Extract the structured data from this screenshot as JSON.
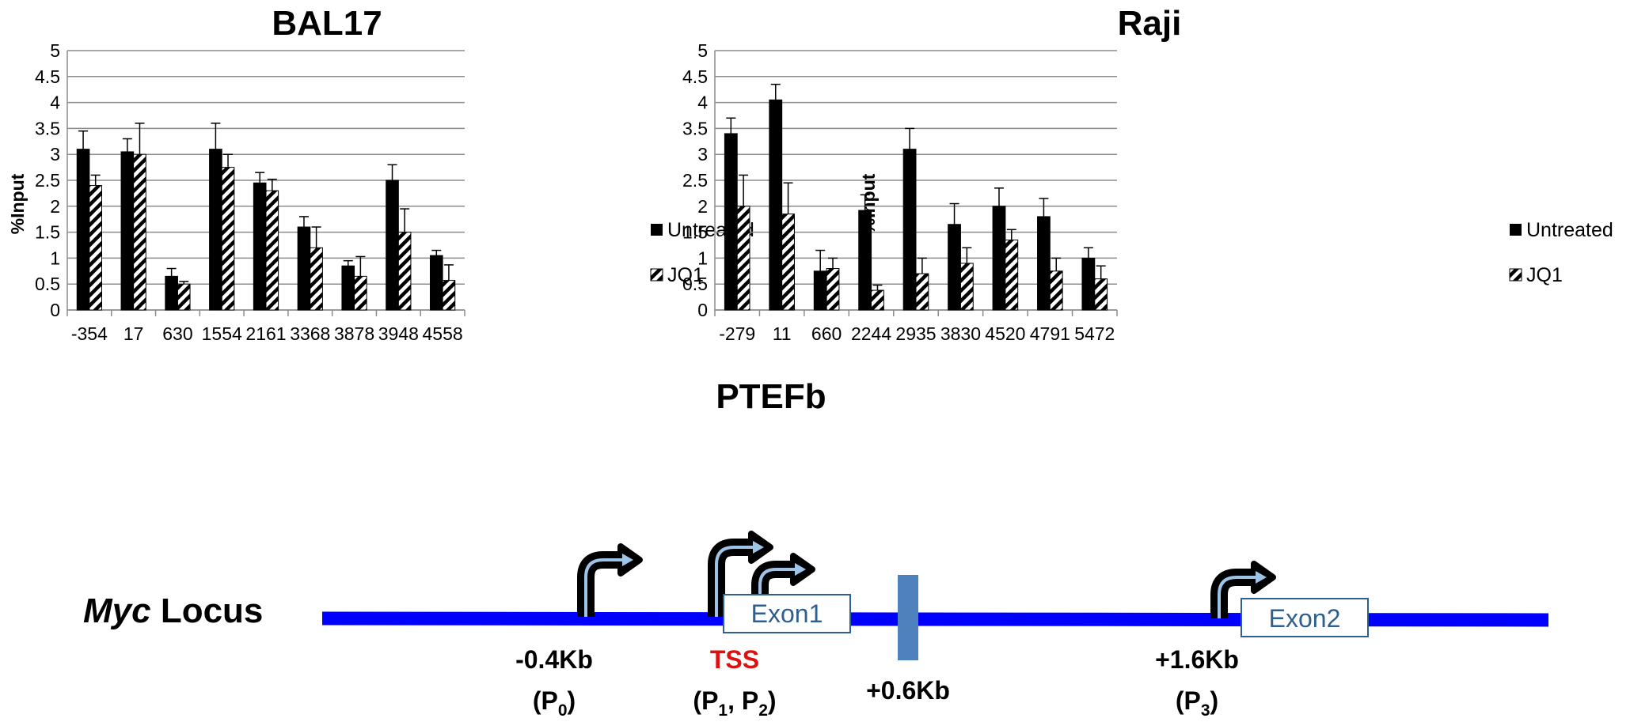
{
  "center_label": "PTEFb",
  "chart_data": [
    {
      "type": "bar",
      "title": "BAL17",
      "ylabel": "%Input",
      "xlabel": "",
      "ylim": [
        0,
        5
      ],
      "yticks": [
        "0",
        "0.5",
        "1",
        "1.5",
        "2",
        "2.5",
        "3",
        "3.5",
        "4",
        "4.5",
        "5"
      ],
      "grid": true,
      "legend_position": "right",
      "categories": [
        "-354",
        "17",
        "630",
        "1554",
        "2161",
        "3368",
        "3878",
        "3948",
        "4558"
      ],
      "series": [
        {
          "name": "Untreated",
          "fill": "solid",
          "color": "#000000",
          "values": [
            3.1,
            3.05,
            0.65,
            3.1,
            2.45,
            1.6,
            0.85,
            2.5,
            1.05
          ],
          "errors": [
            0.35,
            0.25,
            0.15,
            0.5,
            0.2,
            0.2,
            0.1,
            0.3,
            0.1
          ]
        },
        {
          "name": "JQ1",
          "fill": "hatched",
          "color": "#000000",
          "values": [
            2.4,
            3.0,
            0.5,
            2.75,
            2.3,
            1.2,
            0.65,
            1.5,
            0.57
          ],
          "errors": [
            0.2,
            0.6,
            0.05,
            0.25,
            0.22,
            0.4,
            0.38,
            0.45,
            0.3
          ]
        }
      ]
    },
    {
      "type": "bar",
      "title": "Raji",
      "ylabel": "%Input",
      "xlabel": "",
      "ylim": [
        0,
        5
      ],
      "yticks": [
        "0",
        "0.5",
        "1",
        "1.5",
        "2",
        "2.5",
        "3",
        "3.5",
        "4",
        "4.5",
        "5"
      ],
      "grid": true,
      "legend_position": "right",
      "categories": [
        "-279",
        "11",
        "660",
        "2244",
        "2935",
        "3830",
        "4520",
        "4791",
        "5472"
      ],
      "series": [
        {
          "name": "Untreated",
          "fill": "solid",
          "color": "#000000",
          "values": [
            3.4,
            4.05,
            0.75,
            1.92,
            3.1,
            1.65,
            2.0,
            1.8,
            1.0
          ],
          "errors": [
            0.3,
            0.3,
            0.4,
            0.3,
            0.4,
            0.4,
            0.35,
            0.35,
            0.2
          ]
        },
        {
          "name": "JQ1",
          "fill": "hatched",
          "color": "#000000",
          "values": [
            2.0,
            1.85,
            0.8,
            0.38,
            0.7,
            0.9,
            1.35,
            0.75,
            0.6
          ],
          "errors": [
            0.6,
            0.6,
            0.2,
            0.1,
            0.3,
            0.3,
            0.2,
            0.25,
            0.25
          ]
        }
      ]
    }
  ],
  "locus_diagram": {
    "label_italic": "Myc",
    "label_rest": " Locus",
    "exon1": "Exon1",
    "exon2": "Exon2",
    "p0_position": "-0.4Kb",
    "p0_main": "(P",
    "p0_sub": "0",
    "p0_close": ")",
    "tss_label": "TSS",
    "tss_color": "#e01010",
    "p12_main": "(P",
    "p12_sub1": "1",
    "p12_mid": ", P",
    "p12_sub2": "2",
    "p12_close": ")",
    "element_position": "+0.6Kb",
    "p3_position": "+1.6Kb",
    "p3_main": "(P",
    "p3_sub": "3",
    "p3_close": ")",
    "line_color": "#0000ff",
    "element_color": "#4f81bd",
    "arrow_fill": "#9dc3e6"
  }
}
